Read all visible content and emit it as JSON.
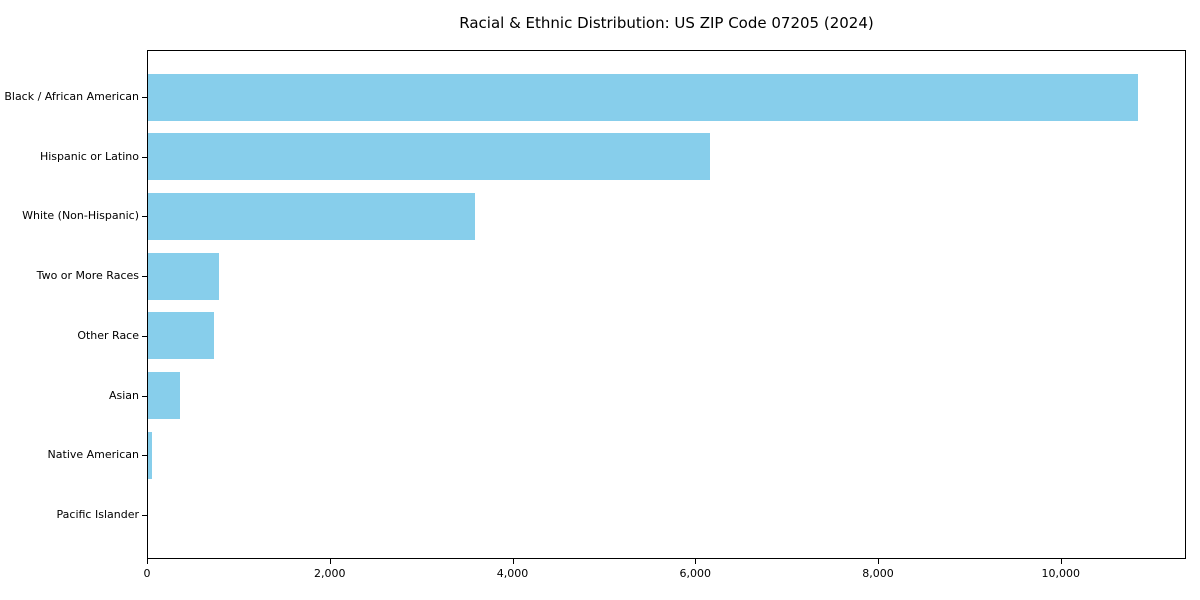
{
  "chart_data": {
    "type": "bar",
    "orientation": "horizontal",
    "title": "Racial & Ethnic Distribution: US ZIP Code 07205 (2024)",
    "xlabel": "",
    "ylabel": "",
    "categories": [
      "Black / African American",
      "Hispanic or Latino",
      "White (Non-Hispanic)",
      "Two or More Races",
      "Other Race",
      "Asian",
      "Native American",
      "Pacific Islander"
    ],
    "values": [
      10832,
      6148,
      3577,
      780,
      718,
      353,
      42,
      0
    ],
    "xlim": [
      0,
      11370
    ],
    "xticks": {
      "values": [
        0,
        2000,
        4000,
        6000,
        8000,
        10000
      ],
      "labels": [
        "0",
        "2,000",
        "4,000",
        "6,000",
        "8,000",
        "10,000"
      ]
    },
    "grid": false,
    "legend": "none",
    "bar_color": "#87CEEB",
    "frame_color": "#000000",
    "text_color": "#000000",
    "background_color": "#ffffff"
  }
}
